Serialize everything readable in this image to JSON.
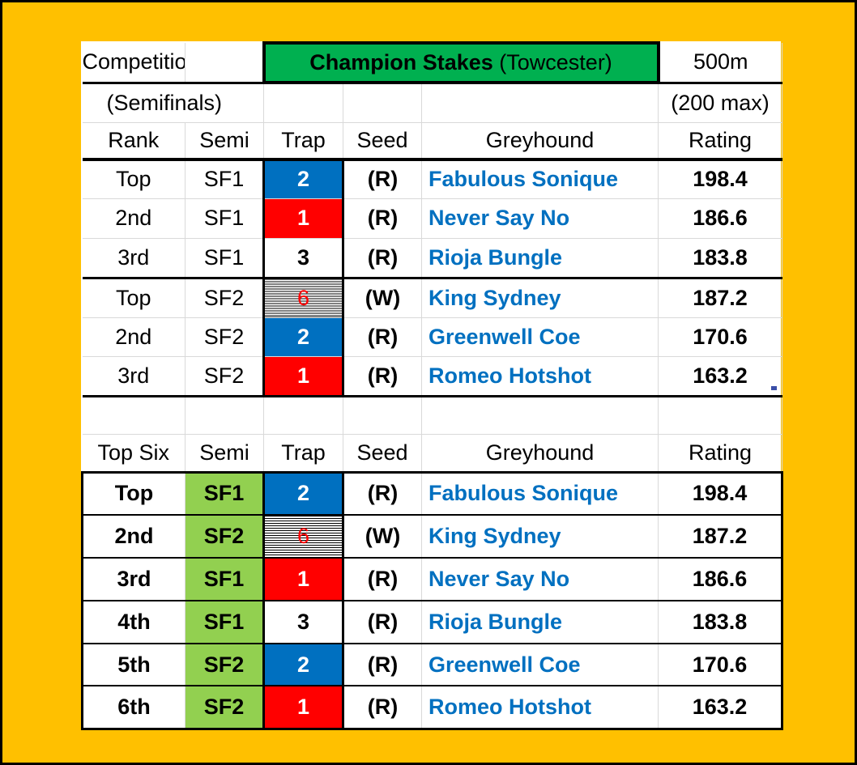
{
  "header": {
    "competition_label": "Competition",
    "title_bold": "Champion Stakes",
    "title_venue": "(Towcester)",
    "distance": "500m",
    "round": "(Semifinals)",
    "max_rating": "(200 max)"
  },
  "semis_table": {
    "columns": [
      "Rank",
      "Semi",
      "Trap",
      "Seed",
      "Greyhound",
      "Rating"
    ],
    "rows": [
      {
        "rank": "Top",
        "semi": "SF1",
        "trap": "2",
        "seed": "(R)",
        "greyhound": "Fabulous Sonique",
        "rating": "198.4"
      },
      {
        "rank": "2nd",
        "semi": "SF1",
        "trap": "1",
        "seed": "(R)",
        "greyhound": "Never Say No",
        "rating": "186.6"
      },
      {
        "rank": "3rd",
        "semi": "SF1",
        "trap": "3",
        "seed": "(R)",
        "greyhound": "Rioja Bungle",
        "rating": "183.8"
      },
      {
        "rank": "Top",
        "semi": "SF2",
        "trap": "6",
        "seed": "(W)",
        "greyhound": "King Sydney",
        "rating": "187.2"
      },
      {
        "rank": "2nd",
        "semi": "SF2",
        "trap": "2",
        "seed": "(R)",
        "greyhound": "Greenwell Coe",
        "rating": "170.6"
      },
      {
        "rank": "3rd",
        "semi": "SF2",
        "trap": "1",
        "seed": "(R)",
        "greyhound": "Romeo Hotshot",
        "rating": "163.2"
      }
    ]
  },
  "top_six_table": {
    "columns": [
      "Top Six",
      "Semi",
      "Trap",
      "Seed",
      "Greyhound",
      "Rating"
    ],
    "rows": [
      {
        "rank": "Top",
        "semi": "SF1",
        "trap": "2",
        "seed": "(R)",
        "greyhound": "Fabulous Sonique",
        "rating": "198.4"
      },
      {
        "rank": "2nd",
        "semi": "SF2",
        "trap": "6",
        "seed": "(W)",
        "greyhound": "King Sydney",
        "rating": "187.2"
      },
      {
        "rank": "3rd",
        "semi": "SF1",
        "trap": "1",
        "seed": "(R)",
        "greyhound": "Never Say No",
        "rating": "186.6"
      },
      {
        "rank": "4th",
        "semi": "SF1",
        "trap": "3",
        "seed": "(R)",
        "greyhound": "Rioja Bungle",
        "rating": "183.8"
      },
      {
        "rank": "5th",
        "semi": "SF2",
        "trap": "2",
        "seed": "(R)",
        "greyhound": "Greenwell Coe",
        "rating": "170.6"
      },
      {
        "rank": "6th",
        "semi": "SF2",
        "trap": "1",
        "seed": "(R)",
        "greyhound": "Romeo Hotshot",
        "rating": "163.2"
      }
    ]
  },
  "colors": {
    "frame": "#FFC000",
    "title_fill": "#00B050",
    "semi_fill": "#92D050",
    "trap1": "#FF0000",
    "trap2": "#0070C0",
    "greyhound_text": "#0070C0"
  }
}
